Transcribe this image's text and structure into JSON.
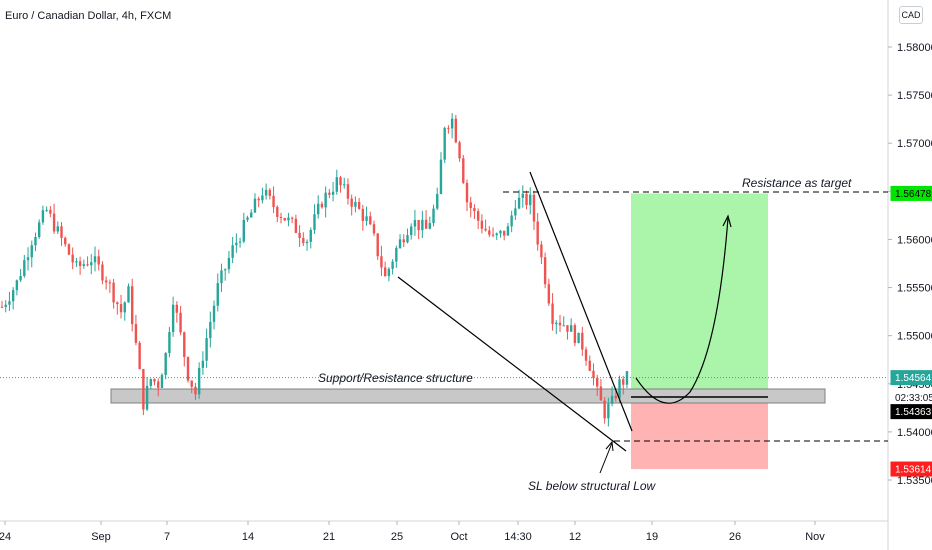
{
  "header": {
    "title": "Euro / Canadian Dollar, 4h, FXCM",
    "currency_button": "CAD"
  },
  "chart_data": {
    "type": "candlestick",
    "symbol": "Euro / Canadian Dollar",
    "interval": "4h",
    "source": "FXCM",
    "x_ticks": [
      "24",
      "Sep",
      "7",
      "14",
      "21",
      "25",
      "Oct",
      "14:30",
      "12",
      "19",
      "26",
      "Nov"
    ],
    "y_ticks": [
      "1.58000",
      "1.57500",
      "1.57000",
      "1.56500",
      "1.56000",
      "1.55500",
      "1.55000",
      "1.54500",
      "1.54000",
      "1.53500"
    ],
    "ylim": [
      1.5332,
      1.5825
    ],
    "price_tags": [
      {
        "label": "1.56478",
        "value": 1.56478,
        "color": "#00e600",
        "text_color": "#000000"
      },
      {
        "label": "1.54564",
        "value": 1.54564,
        "color": "#26a69a",
        "text_color": "#ffffff"
      },
      {
        "label": "02:33:05",
        "value": 1.5447,
        "color": "#ffffff",
        "text_color": "#131722"
      },
      {
        "label": "1.54363",
        "value": 1.54363,
        "color": "#000000",
        "text_color": "#ffffff"
      },
      {
        "label": "1.53614",
        "value": 1.53614,
        "color": "#ff1e1e",
        "text_color": "#ffffff"
      }
    ],
    "annotations": {
      "target": "Resistance as target",
      "structure": "Support/Resistance structure",
      "stop": "SL below structural Low"
    },
    "position": {
      "entry": 1.54363,
      "target": 1.56478,
      "stop": 1.53614
    },
    "up_color": "#26a69a",
    "down_color": "#ef5350",
    "path": [
      [
        0,
        1.553
      ],
      [
        4,
        1.5555
      ],
      [
        8,
        1.56
      ],
      [
        12,
        1.563
      ],
      [
        16,
        1.56
      ],
      [
        20,
        1.557
      ],
      [
        24,
        1.558
      ],
      [
        28,
        1.556
      ],
      [
        32,
        1.5525
      ],
      [
        34,
        1.5545
      ],
      [
        36,
        1.549
      ],
      [
        38,
        1.543
      ],
      [
        40,
        1.5455
      ],
      [
        42,
        1.545
      ],
      [
        44,
        1.548
      ],
      [
        46,
        1.554
      ],
      [
        48,
        1.55
      ],
      [
        50,
        1.546
      ],
      [
        52,
        1.544
      ],
      [
        54,
        1.548
      ],
      [
        58,
        1.555
      ],
      [
        62,
        1.559
      ],
      [
        66,
        1.562
      ],
      [
        70,
        1.565
      ],
      [
        74,
        1.563
      ],
      [
        78,
        1.5615
      ],
      [
        82,
        1.56
      ],
      [
        86,
        1.564
      ],
      [
        90,
        1.566
      ],
      [
        94,
        1.564
      ],
      [
        98,
        1.562
      ],
      [
        100,
        1.56
      ],
      [
        103,
        1.556
      ],
      [
        106,
        1.559
      ],
      [
        110,
        1.562
      ],
      [
        114,
        1.561
      ],
      [
        117,
        1.564
      ],
      [
        119,
        1.572
      ],
      [
        121,
        1.5725
      ],
      [
        123,
        1.569
      ],
      [
        125,
        1.564
      ],
      [
        128,
        1.562
      ],
      [
        132,
        1.56
      ],
      [
        136,
        1.561
      ],
      [
        138,
        1.564
      ],
      [
        142,
        1.564
      ],
      [
        144,
        1.56
      ],
      [
        146,
        1.556
      ],
      [
        148,
        1.552
      ],
      [
        152,
        1.551
      ],
      [
        156,
        1.549
      ],
      [
        158,
        1.547
      ],
      [
        160,
        1.544
      ],
      [
        162,
        1.542
      ],
      [
        164,
        1.543
      ],
      [
        166,
        1.545
      ],
      [
        168,
        1.5456
      ]
    ]
  }
}
